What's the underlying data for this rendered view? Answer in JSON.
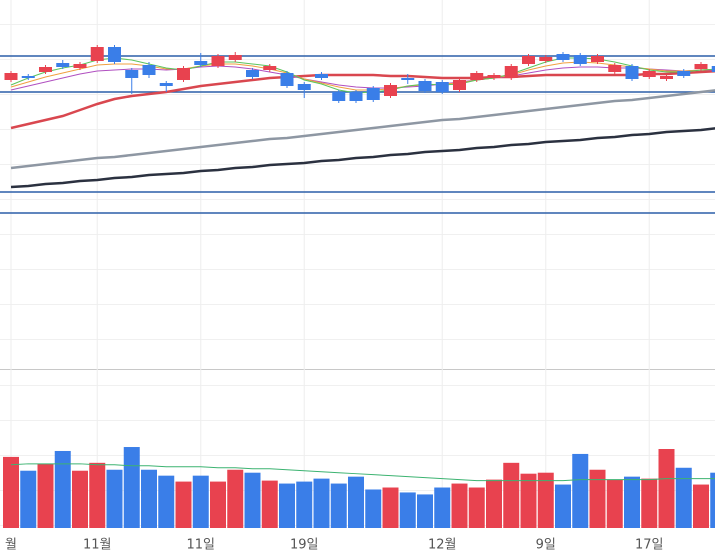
{
  "chart_data": {
    "type": "candlestick",
    "categories": [
      "월",
      null,
      null,
      null,
      null,
      "11월",
      null,
      null,
      null,
      null,
      null,
      "11일",
      null,
      null,
      null,
      null,
      null,
      "19일",
      null,
      null,
      null,
      null,
      null,
      null,
      null,
      "12월",
      null,
      null,
      null,
      null,
      null,
      "9일",
      null,
      null,
      null,
      null,
      null,
      "17일",
      null,
      null,
      null,
      null
    ],
    "open": [
      290,
      294,
      298,
      307,
      302,
      309,
      323,
      300,
      305,
      287,
      290,
      309,
      304,
      310,
      300,
      300,
      297,
      286,
      296,
      278,
      278,
      282,
      274,
      292,
      289,
      288,
      280,
      290,
      292,
      292,
      306,
      309,
      316,
      315,
      308,
      298,
      304,
      293,
      291,
      299,
      301,
      304
    ],
    "high": [
      299,
      296,
      305,
      310,
      308,
      325,
      325,
      302,
      308,
      289,
      304,
      317,
      316,
      318,
      302,
      306,
      299,
      288,
      298,
      280,
      280,
      284,
      287,
      296,
      291,
      290,
      292,
      299,
      297,
      306,
      316,
      315,
      318,
      317,
      316,
      307,
      306,
      301,
      296,
      301,
      308,
      306
    ],
    "low": [
      288,
      290,
      296,
      301,
      300,
      307,
      306,
      276,
      292,
      278,
      288,
      303,
      302,
      308,
      291,
      298,
      282,
      272,
      290,
      267,
      267,
      268,
      272,
      286,
      277,
      276,
      278,
      288,
      290,
      290,
      304,
      307,
      308,
      304,
      306,
      296,
      289,
      291,
      289,
      292,
      299,
      296
    ],
    "close": [
      297,
      292,
      303,
      303,
      306,
      323,
      308,
      292,
      295,
      284,
      302,
      305,
      314,
      315,
      293,
      304,
      284,
      280,
      292,
      269,
      269,
      270,
      285,
      290,
      279,
      278,
      290,
      297,
      295,
      304,
      314,
      313,
      310,
      306,
      314,
      305,
      291,
      299,
      294,
      294,
      306,
      298
    ],
    "up_color": "#e8424f",
    "down_color": "#3a7ee8",
    "ylim": [
      0,
      370
    ],
    "levels": [
      314,
      278,
      178,
      157
    ],
    "level_color": "#2c5fa8",
    "moving_averages": [
      {
        "color": "#2b3140",
        "width": 2.5,
        "values": [
          183,
          184,
          186,
          187,
          189,
          190,
          192,
          193,
          195,
          196,
          197,
          199,
          200,
          202,
          203,
          205,
          206,
          207,
          209,
          210,
          212,
          213,
          215,
          216,
          218,
          219,
          220,
          222,
          223,
          225,
          226,
          228,
          229,
          230,
          232,
          233,
          235,
          236,
          238,
          239,
          240,
          242
        ]
      },
      {
        "color": "#8e97a3",
        "width": 2.5,
        "values": [
          202,
          204,
          206,
          208,
          210,
          212,
          213,
          215,
          217,
          219,
          221,
          223,
          225,
          227,
          229,
          231,
          232,
          234,
          236,
          238,
          240,
          242,
          244,
          246,
          248,
          250,
          251,
          253,
          255,
          257,
          259,
          261,
          263,
          265,
          267,
          269,
          270,
          272,
          274,
          276,
          278,
          280
        ]
      },
      {
        "color": "#d9474f",
        "width": 2.5,
        "values": [
          242,
          246,
          250,
          254,
          260,
          266,
          271,
          274,
          276,
          278,
          281,
          284,
          286,
          288,
          290,
          292,
          293,
          294,
          295,
          295,
          295,
          295,
          294,
          294,
          293,
          292,
          292,
          292,
          293,
          293,
          294,
          295,
          295,
          295,
          295,
          295,
          295,
          296,
          296,
          297,
          298,
          299
        ]
      },
      {
        "color": "#b04fc0",
        "width": 1,
        "values": [
          280,
          284,
          288,
          292,
          296,
          299,
          300,
          301,
          301,
          300,
          301,
          303,
          304,
          303,
          301,
          298,
          295,
          291,
          288,
          285,
          283,
          282,
          282,
          283,
          284,
          286,
          288,
          290,
          292,
          294,
          297,
          300,
          302,
          303,
          303,
          302,
          302,
          301,
          300,
          299,
          300,
          300
        ]
      },
      {
        "color": "#f0a040",
        "width": 1,
        "values": [
          283,
          288,
          293,
          297,
          301,
          305,
          306,
          306,
          304,
          301,
          301,
          304,
          306,
          306,
          304,
          301,
          297,
          291,
          287,
          283,
          280,
          280,
          281,
          284,
          285,
          286,
          287,
          290,
          292,
          295,
          300,
          304,
          307,
          308,
          307,
          305,
          303,
          301,
          299,
          299,
          300,
          301
        ]
      },
      {
        "color": "#5cc45c",
        "width": 1,
        "values": [
          285,
          292,
          298,
          302,
          305,
          310,
          312,
          310,
          306,
          302,
          300,
          304,
          308,
          308,
          306,
          304,
          298,
          290,
          286,
          280,
          277,
          278,
          280,
          284,
          286,
          285,
          286,
          290,
          292,
          296,
          302,
          308,
          312,
          312,
          311,
          308,
          304,
          300,
          298,
          298,
          300,
          301
        ]
      }
    ],
    "volume": {
      "ylim": [
        0,
        160
      ],
      "values": [
        72,
        58,
        65,
        78,
        58,
        66,
        59,
        82,
        59,
        53,
        47,
        53,
        47,
        59,
        56,
        48,
        45,
        47,
        50,
        45,
        52,
        39,
        41,
        36,
        34,
        41,
        45,
        41,
        49,
        66,
        55,
        56,
        44,
        75,
        59,
        49,
        52,
        50,
        80,
        61,
        44,
        56
      ],
      "ma_color": "#3cb371",
      "ma": [
        64,
        65,
        65,
        65,
        65,
        64,
        64,
        63,
        63,
        62,
        62,
        62,
        61,
        61,
        60,
        60,
        59,
        58,
        57,
        56,
        55,
        54,
        53,
        52,
        51,
        50,
        49,
        48,
        48,
        48,
        48,
        48,
        48,
        49,
        49,
        49,
        49,
        49,
        50,
        50,
        50,
        50
      ]
    }
  }
}
